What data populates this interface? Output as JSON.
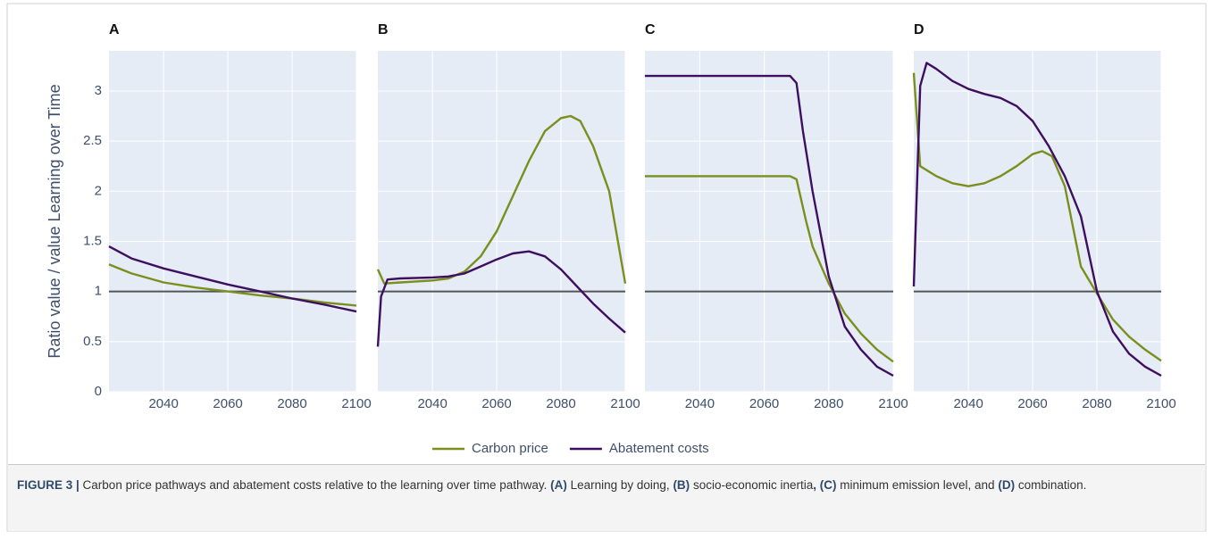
{
  "chart_data": [
    {
      "type": "line",
      "title": "A",
      "ylabel": "Ratio value / value Learning over Time",
      "xlim": [
        2023,
        2100
      ],
      "xticks": [
        2040,
        2060,
        2080,
        2100
      ],
      "ylim": [
        0,
        3.4
      ],
      "yticks": [
        0,
        0.5,
        1,
        1.5,
        2,
        2.5,
        3
      ],
      "grid": true,
      "hline": 1,
      "series": [
        {
          "name": "Carbon price",
          "color": "#7b8f1e",
          "x": [
            2023,
            2030,
            2040,
            2050,
            2060,
            2070,
            2080,
            2090,
            2100
          ],
          "values": [
            1.27,
            1.18,
            1.09,
            1.04,
            1.0,
            0.96,
            0.93,
            0.89,
            0.86
          ]
        },
        {
          "name": "Abatement costs",
          "color": "#3f0f5f",
          "x": [
            2023,
            2030,
            2040,
            2050,
            2060,
            2070,
            2080,
            2090,
            2100
          ],
          "values": [
            1.45,
            1.33,
            1.23,
            1.15,
            1.07,
            1.0,
            0.93,
            0.87,
            0.8
          ]
        }
      ]
    },
    {
      "type": "line",
      "title": "B",
      "xlim": [
        2023,
        2100
      ],
      "xticks": [
        2040,
        2060,
        2080,
        2100
      ],
      "ylim": [
        0,
        3.4
      ],
      "yticks": [
        0,
        0.5,
        1,
        1.5,
        2,
        2.5,
        3
      ],
      "grid": true,
      "hline": 1,
      "series": [
        {
          "name": "Carbon price",
          "color": "#7b8f1e",
          "x": [
            2023,
            2025,
            2030,
            2040,
            2045,
            2050,
            2055,
            2060,
            2065,
            2070,
            2075,
            2080,
            2083,
            2086,
            2090,
            2095,
            2100
          ],
          "values": [
            1.22,
            1.08,
            1.09,
            1.11,
            1.13,
            1.2,
            1.35,
            1.6,
            1.95,
            2.3,
            2.6,
            2.73,
            2.75,
            2.7,
            2.45,
            2.0,
            1.08
          ]
        },
        {
          "name": "Abatement costs",
          "color": "#3f0f5f",
          "x": [
            2023,
            2024,
            2026,
            2030,
            2040,
            2045,
            2050,
            2055,
            2060,
            2065,
            2070,
            2075,
            2080,
            2085,
            2090,
            2095,
            2100
          ],
          "values": [
            0.45,
            0.95,
            1.12,
            1.13,
            1.14,
            1.15,
            1.18,
            1.25,
            1.32,
            1.38,
            1.4,
            1.35,
            1.22,
            1.05,
            0.88,
            0.73,
            0.59
          ]
        }
      ]
    },
    {
      "type": "line",
      "title": "C",
      "xlim": [
        2023,
        2100
      ],
      "xticks": [
        2040,
        2060,
        2080,
        2100
      ],
      "ylim": [
        0,
        3.4
      ],
      "yticks": [
        0,
        0.5,
        1,
        1.5,
        2,
        2.5,
        3
      ],
      "grid": true,
      "hline": 1,
      "series": [
        {
          "name": "Carbon price",
          "color": "#7b8f1e",
          "x": [
            2023,
            2068,
            2070,
            2073,
            2075,
            2080,
            2085,
            2090,
            2095,
            2100
          ],
          "values": [
            2.15,
            2.15,
            2.12,
            1.7,
            1.45,
            1.08,
            0.78,
            0.58,
            0.42,
            0.3
          ]
        },
        {
          "name": "Abatement costs",
          "color": "#3f0f5f",
          "x": [
            2023,
            2068,
            2070,
            2072,
            2075,
            2080,
            2085,
            2090,
            2095,
            2100
          ],
          "values": [
            3.15,
            3.15,
            3.08,
            2.6,
            2.0,
            1.15,
            0.65,
            0.42,
            0.25,
            0.16
          ]
        }
      ]
    },
    {
      "type": "line",
      "title": "D",
      "xlim": [
        2023,
        2100
      ],
      "xticks": [
        2040,
        2060,
        2080,
        2100
      ],
      "ylim": [
        0,
        3.4
      ],
      "yticks": [
        0,
        0.5,
        1,
        1.5,
        2,
        2.5,
        3
      ],
      "grid": true,
      "hline": 1,
      "series": [
        {
          "name": "Carbon price",
          "color": "#7b8f1e",
          "x": [
            2023,
            2025,
            2030,
            2035,
            2040,
            2045,
            2050,
            2055,
            2060,
            2063,
            2066,
            2070,
            2075,
            2080,
            2085,
            2090,
            2095,
            2100
          ],
          "values": [
            3.18,
            2.25,
            2.15,
            2.08,
            2.05,
            2.08,
            2.15,
            2.25,
            2.37,
            2.4,
            2.35,
            2.05,
            1.25,
            0.98,
            0.72,
            0.55,
            0.42,
            0.31
          ]
        },
        {
          "name": "Abatement costs",
          "color": "#3f0f5f",
          "x": [
            2023,
            2025,
            2027,
            2030,
            2035,
            2040,
            2045,
            2050,
            2055,
            2060,
            2065,
            2070,
            2075,
            2080,
            2085,
            2090,
            2095,
            2100
          ],
          "values": [
            1.05,
            3.05,
            3.28,
            3.22,
            3.1,
            3.02,
            2.97,
            2.93,
            2.85,
            2.7,
            2.45,
            2.15,
            1.75,
            1.0,
            0.6,
            0.38,
            0.25,
            0.16
          ]
        }
      ]
    }
  ],
  "caption": [
    {
      "text": "FIGURE 3 | ",
      "bold": true
    },
    {
      "text": "Carbon price pathways and abatement costs relative to the learning over time pathway. ",
      "bold": false
    },
    {
      "text": "(A)",
      "bold": true
    },
    {
      "text": " Learning by doing, ",
      "bold": false
    },
    {
      "text": "(B)",
      "bold": true
    },
    {
      "text": " socio-economic inertia",
      "bold": false
    },
    {
      "text": ", (C)",
      "bold": true
    },
    {
      "text": " minimum emission level, and ",
      "bold": false
    },
    {
      "text": "(D)",
      "bold": true
    },
    {
      "text": " combination.",
      "bold": false
    }
  ]
}
